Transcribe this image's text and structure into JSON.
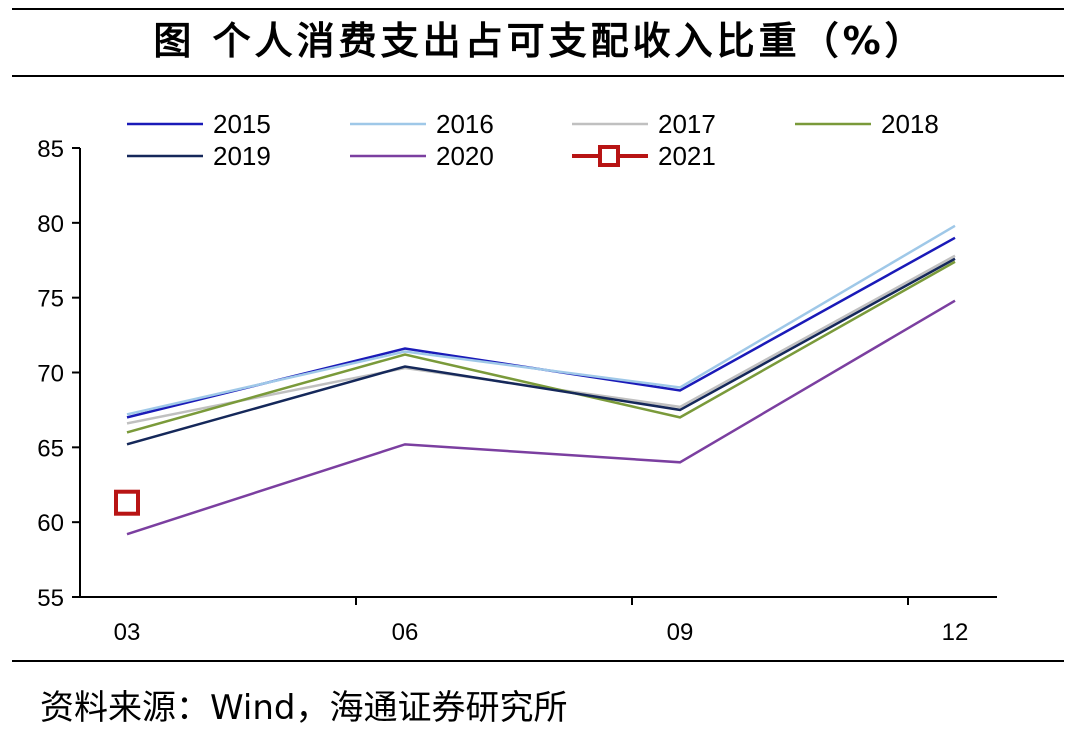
{
  "title": "图 个人消费支出占可支配收入比重（%）",
  "source": "资料来源：Wind，海通证券研究所",
  "chart_data": {
    "type": "line",
    "categories": [
      "03",
      "06",
      "09",
      "12"
    ],
    "ylim": [
      55,
      85
    ],
    "yticks": [
      55,
      60,
      65,
      70,
      75,
      80,
      85
    ],
    "grid": false,
    "legend_position": "top",
    "series": [
      {
        "name": "2015",
        "color": "#1a1ab8",
        "values": [
          67.0,
          71.6,
          68.8,
          79.0
        ]
      },
      {
        "name": "2016",
        "color": "#9fc8e8",
        "values": [
          67.2,
          71.4,
          69.0,
          79.8
        ]
      },
      {
        "name": "2017",
        "color": "#c0c0c0",
        "values": [
          66.6,
          70.3,
          67.7,
          77.8
        ]
      },
      {
        "name": "2018",
        "color": "#7a9a3a",
        "values": [
          66.0,
          71.2,
          67.0,
          77.4
        ]
      },
      {
        "name": "2019",
        "color": "#15285a",
        "values": [
          65.2,
          70.4,
          67.5,
          77.6
        ]
      },
      {
        "name": "2020",
        "color": "#7b3fa0",
        "values": [
          59.2,
          65.2,
          64.0,
          74.8
        ]
      },
      {
        "name": "2021",
        "color": "#b81414",
        "marker": "square",
        "values": [
          61.3,
          null,
          null,
          null
        ]
      }
    ]
  }
}
